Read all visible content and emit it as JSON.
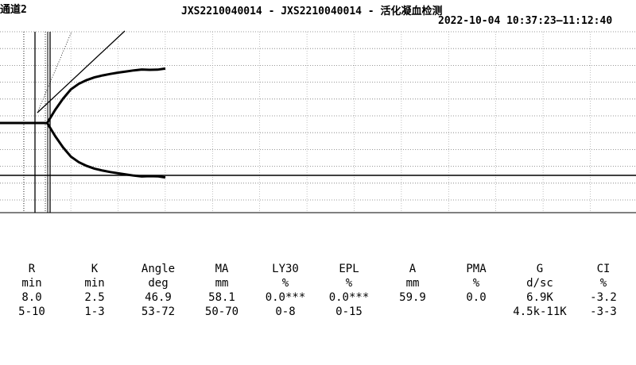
{
  "header": {
    "channel": "通道2",
    "title": "JXS2210040014 - JXS2210040014 - 活化凝血检测",
    "timestamp": "2022-10-04 10:37:23—11:12:40"
  },
  "chart_data": {
    "type": "line",
    "title": "",
    "xlabel": "",
    "ylabel": "",
    "grid": true,
    "x": [
      0,
      1,
      2,
      3,
      4,
      5,
      6,
      7,
      8,
      9,
      10,
      11,
      12,
      13,
      14,
      15,
      16,
      17,
      18,
      19,
      20,
      21
    ],
    "series": [
      {
        "values": [
          0,
          0,
          0,
          0,
          0,
          0,
          0,
          7,
          13,
          18,
          21,
          23,
          24.5,
          25.5,
          26.3,
          27,
          27.6,
          28.2,
          28.7,
          28.5,
          28.6,
          29.2
        ]
      }
    ],
    "mirror": true,
    "reference_lines": {
      "r_time": 8.0,
      "k_time": 10.5
    }
  },
  "params": [
    {
      "name": "R",
      "unit": "min",
      "value": "8.0",
      "range": "5-10"
    },
    {
      "name": "K",
      "unit": "min",
      "value": "2.5",
      "range": "1-3"
    },
    {
      "name": "Angle",
      "unit": "deg",
      "value": "46.9",
      "range": "53-72"
    },
    {
      "name": "MA",
      "unit": "mm",
      "value": "58.1",
      "range": "50-70"
    },
    {
      "name": "LY30",
      "unit": "%",
      "value": "0.0***",
      "range": "0-8"
    },
    {
      "name": "EPL",
      "unit": "%",
      "value": "0.0***",
      "range": "0-15"
    },
    {
      "name": "A",
      "unit": "mm",
      "value": "59.9",
      "range": ""
    },
    {
      "name": "PMA",
      "unit": "%",
      "value": "0.0",
      "range": ""
    },
    {
      "name": "G",
      "unit": "d/sc",
      "value": "6.9K",
      "range": "4.5k-11K"
    },
    {
      "name": "CI",
      "unit": "%",
      "value": "-3.2",
      "range": "-3-3"
    }
  ]
}
